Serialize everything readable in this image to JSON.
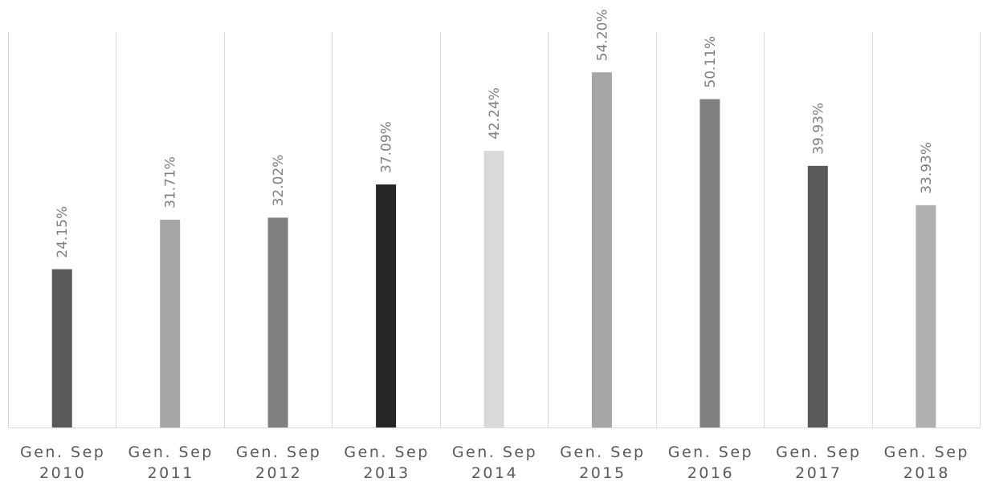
{
  "chart_data": {
    "type": "bar",
    "title": "",
    "xlabel": "",
    "ylabel": "",
    "ylim": [
      0,
      60
    ],
    "grid": "vertical category separators",
    "legend": "none",
    "categories": [
      [
        "Gen. Sep",
        "2010"
      ],
      [
        "Gen. Sep",
        "2011"
      ],
      [
        "Gen. Sep",
        "2012"
      ],
      [
        "Gen. Sep",
        "2013"
      ],
      [
        "Gen. Sep",
        "2014"
      ],
      [
        "Gen. Sep",
        "2015"
      ],
      [
        "Gen. Sep",
        "2016"
      ],
      [
        "Gen. Sep",
        "2017"
      ],
      [
        "Gen. Sep",
        "2018"
      ]
    ],
    "values": [
      24.15,
      31.71,
      32.02,
      37.09,
      42.24,
      54.2,
      50.11,
      39.93,
      33.93
    ],
    "value_labels": [
      "24.15%",
      "31.71%",
      "32.02%",
      "37.09%",
      "42.24%",
      "54.20%",
      "50.11%",
      "39.93%",
      "33.93%"
    ],
    "colors": [
      "#595959",
      "#a6a6a6",
      "#808080",
      "#262626",
      "#d9d9d9",
      "#a6a6a6",
      "#7f7f7f",
      "#595959",
      "#b0b0b0"
    ]
  }
}
